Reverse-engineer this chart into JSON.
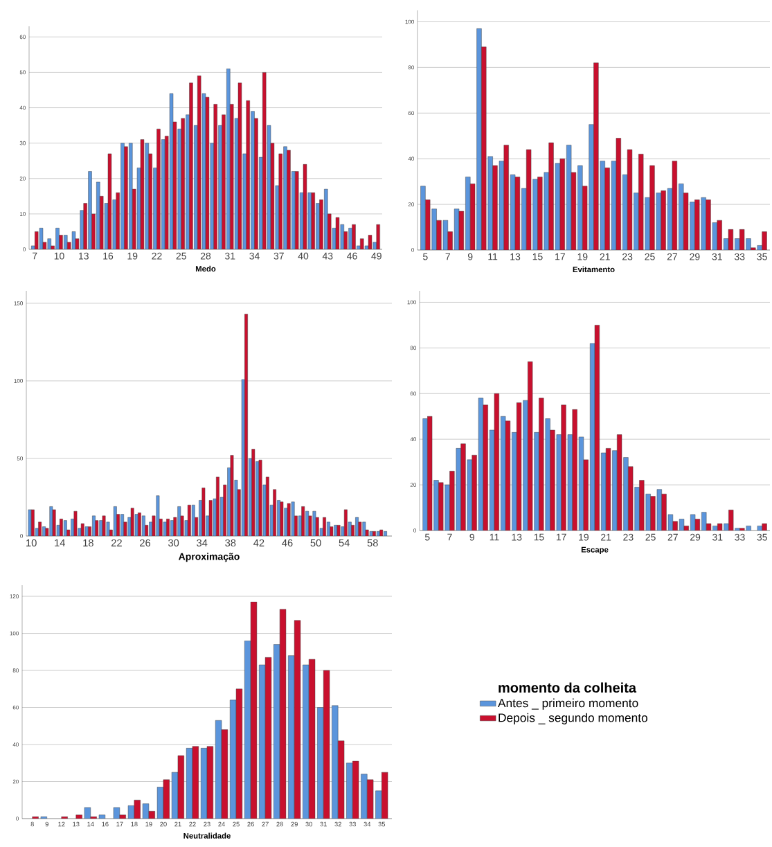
{
  "chart_data": [
    {
      "type": "bar",
      "xlabel": "Medo",
      "categories": [
        "7",
        null,
        null,
        "10",
        null,
        null,
        "13",
        null,
        null,
        "16",
        null,
        null,
        "19",
        null,
        null,
        "22",
        null,
        null,
        "25",
        null,
        null,
        "28",
        null,
        null,
        "31",
        null,
        null,
        "34",
        null,
        null,
        "37",
        null,
        null,
        "40",
        null,
        null,
        "43",
        null,
        null,
        "46",
        null,
        null,
        "49"
      ],
      "ylim": [
        0,
        63
      ],
      "yticks": [
        0,
        10,
        20,
        30,
        40,
        50,
        60
      ],
      "grid": "y",
      "series": [
        {
          "color": "#5b95dc",
          "values": [
            1,
            6,
            3,
            6,
            4,
            5,
            11,
            22,
            19,
            13,
            14,
            30,
            30,
            23,
            30,
            23,
            31,
            44,
            34,
            38,
            35,
            44,
            30,
            35,
            51,
            37,
            27,
            39,
            26,
            35,
            18,
            29,
            22,
            16,
            16,
            13,
            17,
            6,
            7,
            6,
            1,
            1,
            2
          ]
        },
        {
          "color": "#c8102e",
          "values": [
            5,
            2,
            1,
            4,
            2,
            3,
            13,
            10,
            15,
            27,
            16,
            29,
            17,
            31,
            27,
            34,
            32,
            36,
            37,
            47,
            49,
            43,
            41,
            38,
            41,
            47,
            42,
            37,
            50,
            30,
            27,
            28,
            22,
            24,
            16,
            14,
            10,
            9,
            5,
            7,
            3,
            4,
            7
          ]
        }
      ]
    },
    {
      "type": "bar",
      "xlabel": "Evitamento",
      "categories": [
        "5",
        null,
        "7",
        null,
        "9",
        null,
        "11",
        null,
        "13",
        null,
        "15",
        null,
        "17",
        null,
        "19",
        null,
        "21",
        null,
        "23",
        null,
        "25",
        null,
        "27",
        null,
        "29",
        null,
        "31",
        null,
        "33",
        null,
        "35"
      ],
      "ylim": [
        0,
        105
      ],
      "yticks": [
        0,
        20,
        40,
        60,
        80,
        100
      ],
      "grid": "y",
      "series": [
        {
          "color": "#5b95dc",
          "values": [
            28,
            18,
            13,
            18,
            32,
            97,
            41,
            39,
            33,
            27,
            31,
            34,
            38,
            46,
            37,
            55,
            39,
            39,
            33,
            25,
            23,
            25,
            27,
            29,
            21,
            23,
            12,
            5,
            5,
            5,
            2
          ]
        },
        {
          "color": "#c8102e",
          "values": [
            22,
            13,
            8,
            17,
            29,
            89,
            37,
            46,
            32,
            44,
            32,
            47,
            40,
            34,
            28,
            82,
            36,
            49,
            44,
            42,
            37,
            26,
            39,
            25,
            22,
            22,
            13,
            9,
            9,
            1,
            8
          ]
        }
      ]
    },
    {
      "type": "bar",
      "xlabel": "Aproximação",
      "categories": [
        "10",
        null,
        null,
        null,
        "14",
        null,
        null,
        null,
        "18",
        null,
        null,
        null,
        "22",
        null,
        null,
        null,
        "26",
        null,
        null,
        null,
        "30",
        null,
        null,
        null,
        "34",
        null,
        null,
        null,
        "38",
        null,
        null,
        null,
        "42",
        null,
        null,
        null,
        "46",
        null,
        null,
        null,
        "50",
        null,
        null,
        null,
        "54",
        null,
        null,
        null,
        "58",
        null,
        null
      ],
      "ylim": [
        0,
        158
      ],
      "yticks": [
        0,
        50,
        100,
        150
      ],
      "grid": "y",
      "series": [
        {
          "color": "#5b95dc",
          "values": [
            17,
            5,
            6,
            19,
            7,
            10,
            11,
            5,
            6,
            13,
            10,
            9,
            19,
            14,
            12,
            14,
            13,
            9,
            26,
            9,
            10,
            19,
            10,
            20,
            23,
            13,
            24,
            25,
            44,
            36,
            101,
            50,
            48,
            33,
            20,
            23,
            18,
            22,
            13,
            16,
            16,
            5,
            9,
            7,
            6,
            9,
            12,
            9,
            3,
            3,
            3
          ]
        },
        {
          "color": "#c8102e",
          "values": [
            17,
            9,
            5,
            17,
            11,
            4,
            16,
            8,
            6,
            10,
            13,
            4,
            14,
            9,
            18,
            15,
            7,
            13,
            11,
            11,
            12,
            13,
            20,
            12,
            31,
            23,
            38,
            33,
            52,
            30,
            143,
            56,
            49,
            38,
            30,
            22,
            21,
            13,
            19,
            13,
            12,
            12,
            6,
            7,
            17,
            7,
            9,
            4,
            3,
            4,
            null
          ]
        }
      ]
    },
    {
      "type": "bar",
      "xlabel": "Escape",
      "categories": [
        "5",
        null,
        "7",
        null,
        "9",
        null,
        "11",
        null,
        "13",
        null,
        "15",
        null,
        "17",
        null,
        "19",
        null,
        "21",
        null,
        "23",
        null,
        "25",
        null,
        "27",
        null,
        "29",
        null,
        "31",
        null,
        "33",
        null,
        "35"
      ],
      "ylim": [
        0,
        105
      ],
      "yticks": [
        0,
        20,
        40,
        60,
        80,
        100
      ],
      "grid": "y",
      "series": [
        {
          "color": "#5b95dc",
          "values": [
            49,
            22,
            20,
            36,
            31,
            58,
            44,
            50,
            43,
            57,
            43,
            49,
            42,
            42,
            41,
            82,
            34,
            35,
            32,
            19,
            16,
            18,
            7,
            5,
            7,
            8,
            2,
            3,
            1,
            2,
            2
          ]
        },
        {
          "color": "#c8102e",
          "values": [
            50,
            21,
            26,
            38,
            33,
            55,
            60,
            48,
            56,
            74,
            58,
            44,
            55,
            53,
            31,
            90,
            36,
            42,
            28,
            22,
            15,
            16,
            4,
            2,
            5,
            3,
            3,
            9,
            1,
            null,
            3
          ]
        }
      ]
    },
    {
      "type": "bar",
      "xlabel": "Neutralidade",
      "categories": [
        "8",
        "9",
        "12",
        "13",
        "14",
        "16",
        "17",
        "18",
        "19",
        "20",
        "21",
        "22",
        "23",
        "24",
        "25",
        "26",
        "27",
        "28",
        "29",
        "30",
        "31",
        "32",
        "33",
        "34",
        "35"
      ],
      "ylim": [
        0,
        126
      ],
      "yticks": [
        0,
        20,
        40,
        60,
        80,
        100,
        120
      ],
      "grid": "y",
      "legend": "right",
      "legend_title": "momento da colheita",
      "series": [
        {
          "name": "Antes _ primeiro momento",
          "color": "#5b95dc",
          "values": [
            null,
            1,
            null,
            null,
            6,
            2,
            6,
            7,
            8,
            17,
            25,
            38,
            38,
            53,
            64,
            96,
            83,
            94,
            88,
            83,
            60,
            61,
            30,
            24,
            15
          ]
        },
        {
          "name": "Depois _ segundo momento",
          "color": "#c8102e",
          "values": [
            1,
            null,
            1,
            2,
            1,
            null,
            2,
            10,
            4,
            21,
            34,
            39,
            39,
            48,
            70,
            117,
            87,
            113,
            107,
            86,
            80,
            42,
            31,
            21,
            25
          ]
        }
      ]
    }
  ]
}
